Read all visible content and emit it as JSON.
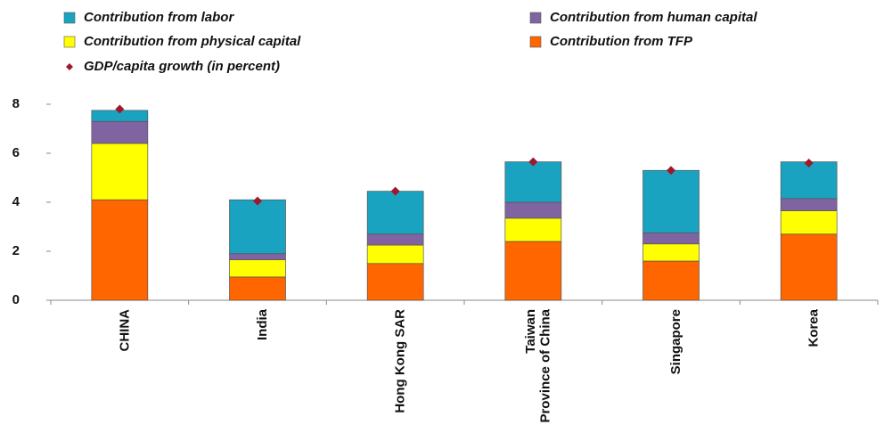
{
  "chart_data": {
    "type": "bar",
    "stacked": true,
    "categories": [
      "CHINA",
      "India",
      "Hong Kong SAR",
      "Taiwan\nProvince of China",
      "Singapore",
      "Korea"
    ],
    "series": [
      {
        "name": "Contribution from labor",
        "type": "bar",
        "color": "#1aa3c0",
        "values": [
          0.45,
          2.2,
          1.75,
          1.65,
          2.55,
          1.5
        ]
      },
      {
        "name": "Contribution from human capital",
        "type": "bar",
        "color": "#8064a2",
        "values": [
          0.9,
          0.25,
          0.45,
          0.65,
          0.45,
          0.5
        ]
      },
      {
        "name": "Contribution from physical capital",
        "type": "bar",
        "color": "#ffff00",
        "values": [
          2.3,
          0.7,
          0.75,
          0.95,
          0.7,
          0.95
        ]
      },
      {
        "name": "Contribution from TFP",
        "type": "bar",
        "color": "#ff6600",
        "values": [
          4.1,
          0.95,
          1.5,
          2.4,
          1.6,
          2.7
        ]
      },
      {
        "name": "GDP/capita growth (in percent)",
        "type": "scatter",
        "color": "#a0182b",
        "values": [
          7.8,
          4.05,
          4.45,
          5.65,
          5.3,
          5.6
        ]
      }
    ],
    "ylim": [
      0,
      8
    ],
    "yticks": [
      0,
      2,
      4,
      6,
      8
    ],
    "grid": false
  }
}
